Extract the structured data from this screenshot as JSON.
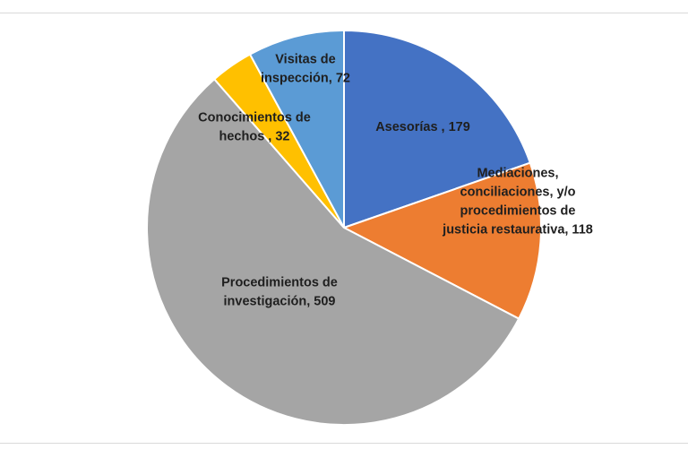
{
  "chart_data": {
    "type": "pie",
    "title": "",
    "slices": [
      {
        "label": "Asesorías , 179",
        "category": "Asesorías",
        "value": 179,
        "color": "#4472C4"
      },
      {
        "label": "Mediaciones, conciliaciones, y/o procedimientos de justicia restaurativa, 118",
        "category": "Mediaciones, conciliaciones, y/o procedimientos de justicia restaurativa",
        "value": 118,
        "color": "#ED7D31"
      },
      {
        "label": "Procedimientos de investigación, 509",
        "category": "Procedimientos de investigación",
        "value": 509,
        "color": "#A5A5A5"
      },
      {
        "label": "Conocimientos de hechos , 32",
        "category": "Conocimientos de hechos",
        "value": 32,
        "color": "#FFC000"
      },
      {
        "label": "Visitas de inspección, 72",
        "category": "Visitas de inspección",
        "value": 72,
        "color": "#5B9BD5"
      }
    ],
    "legend": "none",
    "start": "12 o'clock, clockwise"
  }
}
